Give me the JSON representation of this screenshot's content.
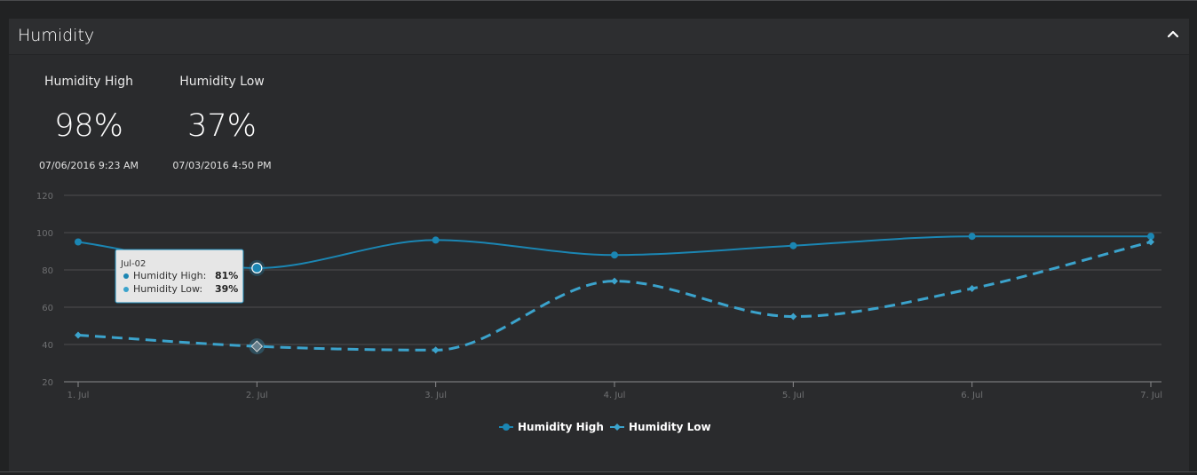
{
  "panel": {
    "title": "Humidity",
    "collapse_icon": "chevron-up-icon"
  },
  "stats": [
    {
      "label": "Humidity High",
      "value": "98%",
      "time": "07/06/2016 9:23 AM"
    },
    {
      "label": "Humidity Low",
      "value": "37%",
      "time": "07/03/2016 4:50 PM"
    }
  ],
  "tooltip": {
    "date": "Jul-02",
    "rows": [
      {
        "series": "Humidity High",
        "value": "81%"
      },
      {
        "series": "Humidity Low",
        "value": "39%"
      }
    ]
  },
  "colors": {
    "high": "#1b86b3",
    "low": "#3ba3cc",
    "grid": "#4d4e50",
    "tick": "#6f7072"
  },
  "chart_data": {
    "type": "line",
    "categories": [
      "1. Jul",
      "2. Jul",
      "3. Jul",
      "4. Jul",
      "5. Jul",
      "6. Jul",
      "7. Jul"
    ],
    "y_ticks": [
      20,
      40,
      60,
      80,
      100,
      120
    ],
    "ylim": [
      20,
      120
    ],
    "grid": true,
    "legend_position": "bottom-center",
    "series": [
      {
        "name": "Humidity High",
        "values": [
          95,
          81,
          96,
          88,
          93,
          98,
          98
        ],
        "style": "solid",
        "marker": "circle"
      },
      {
        "name": "Humidity Low",
        "values": [
          45,
          39,
          37,
          74,
          55,
          70,
          95
        ],
        "style": "dashed",
        "marker": "diamond"
      }
    ],
    "highlight_index": 1
  }
}
